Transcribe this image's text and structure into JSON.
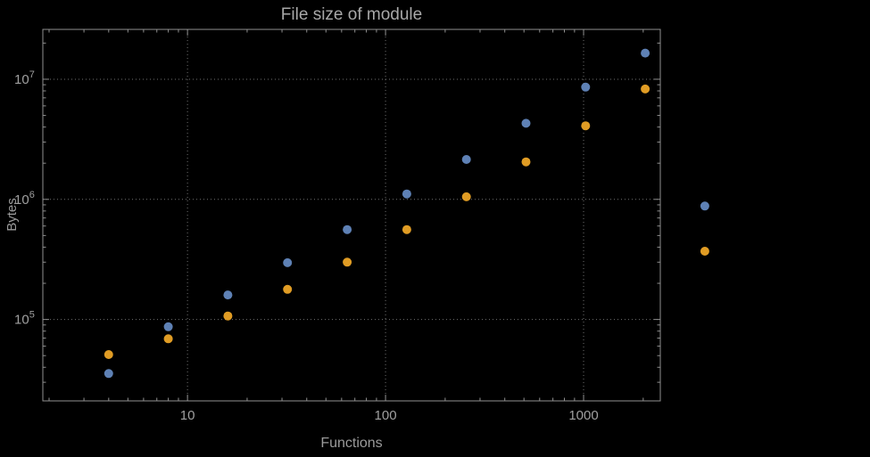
{
  "colors": {
    "background": "#000000",
    "text": "#a0a0a0",
    "title_text": "#a8a8a8",
    "frame": "#909090",
    "grid": "#707070"
  },
  "chart_data": {
    "type": "scatter",
    "title": "File size of module",
    "xlabel": "Functions",
    "ylabel": "Bytes",
    "x_scale": "log",
    "y_scale": "log",
    "grid": true,
    "legend": false,
    "x_ticks": [
      10,
      100,
      1000
    ],
    "y_ticks": [
      100000,
      1000000,
      10000000
    ],
    "xlim": [
      1.86,
      2440
    ],
    "ylim": [
      21000,
      26000000
    ],
    "series": [
      {
        "name": "blue",
        "color": "#5e81b5",
        "points": [
          [
            4,
            35500
          ],
          [
            8,
            87000
          ],
          [
            16,
            160000
          ],
          [
            32,
            297000
          ],
          [
            64,
            560000
          ],
          [
            128,
            1110000
          ],
          [
            256,
            2150000
          ],
          [
            512,
            4300000
          ],
          [
            1024,
            8600000
          ],
          [
            2048,
            16500000
          ],
          [
            4096,
            880000
          ]
        ]
      },
      {
        "name": "orange",
        "color": "#e09c24",
        "points": [
          [
            4,
            51000
          ],
          [
            8,
            69000
          ],
          [
            16,
            107000
          ],
          [
            32,
            178000
          ],
          [
            64,
            300000
          ],
          [
            128,
            560000
          ],
          [
            256,
            1050000
          ],
          [
            512,
            2050000
          ],
          [
            1024,
            4100000
          ],
          [
            2048,
            8300000
          ],
          [
            4096,
            370000
          ]
        ]
      }
    ]
  }
}
